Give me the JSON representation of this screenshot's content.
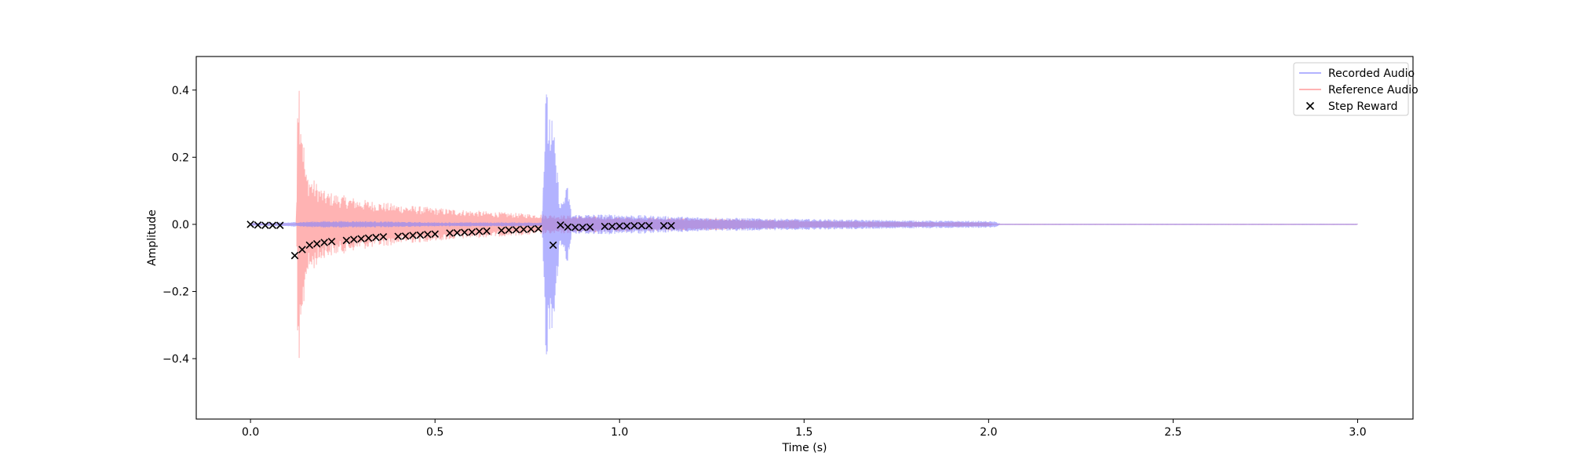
{
  "chart_data": {
    "type": "line",
    "title": "",
    "xlabel": "Time (s)",
    "ylabel": "Amplitude",
    "xlim": [
      -0.147,
      3.15
    ],
    "ylim": [
      -0.58,
      0.5
    ],
    "x_ticks": [
      0.0,
      0.5,
      1.0,
      1.5,
      2.0,
      2.5,
      3.0
    ],
    "x_tick_labels": [
      "0.0",
      "0.5",
      "1.0",
      "1.5",
      "2.0",
      "2.5",
      "3.0"
    ],
    "y_ticks": [
      -0.4,
      -0.2,
      0.0,
      0.2,
      0.4
    ],
    "y_tick_labels": [
      "−0.4",
      "−0.2",
      "0.0",
      "0.2",
      "0.4"
    ],
    "grid": false,
    "legend_position": "top-right",
    "series": [
      {
        "name": "Recorded Audio",
        "kind": "waveform",
        "color": "#8080ff",
        "x_range": [
          0.0,
          3.0
        ],
        "envelope": [
          [
            0.0,
            0.004
          ],
          [
            0.1,
            0.006
          ],
          [
            0.2,
            0.01
          ],
          [
            0.3,
            0.01
          ],
          [
            0.4,
            0.008
          ],
          [
            0.5,
            0.006
          ],
          [
            0.6,
            0.006
          ],
          [
            0.7,
            0.006
          ],
          [
            0.79,
            0.006
          ],
          [
            0.8,
            0.41
          ],
          [
            0.82,
            0.3
          ],
          [
            0.84,
            0.06
          ],
          [
            0.86,
            0.12
          ],
          [
            0.87,
            0.03
          ],
          [
            1.0,
            0.03
          ],
          [
            1.2,
            0.022
          ],
          [
            1.4,
            0.018
          ],
          [
            1.6,
            0.015
          ],
          [
            1.8,
            0.012
          ],
          [
            2.0,
            0.01
          ],
          [
            2.02,
            0.008
          ],
          [
            2.03,
            0.0005
          ],
          [
            3.0,
            0.0005
          ]
        ]
      },
      {
        "name": "Reference Audio",
        "kind": "waveform",
        "color": "#ff8080",
        "x_range": [
          0.0,
          3.0
        ],
        "envelope": [
          [
            0.0,
            0.0
          ],
          [
            0.12,
            0.0
          ],
          [
            0.125,
            0.0
          ],
          [
            0.127,
            0.47
          ],
          [
            0.13,
            0.5
          ],
          [
            0.15,
            0.16
          ],
          [
            0.2,
            0.1
          ],
          [
            0.3,
            0.075
          ],
          [
            0.4,
            0.06
          ],
          [
            0.5,
            0.05
          ],
          [
            0.6,
            0.042
          ],
          [
            0.7,
            0.035
          ],
          [
            0.8,
            0.03
          ],
          [
            0.9,
            0.025
          ],
          [
            1.0,
            0.022
          ],
          [
            1.2,
            0.018
          ],
          [
            1.4,
            0.014
          ],
          [
            1.6,
            0.011
          ],
          [
            1.8,
            0.008
          ],
          [
            2.0,
            0.006
          ],
          [
            2.01,
            0.0005
          ],
          [
            3.0,
            0.0005
          ]
        ]
      },
      {
        "name": "Step Reward",
        "kind": "scatter",
        "marker": "x",
        "color": "#000000",
        "x": [
          0.0,
          0.02,
          0.04,
          0.06,
          0.08,
          0.12,
          0.14,
          0.16,
          0.18,
          0.2,
          0.22,
          0.26,
          0.28,
          0.3,
          0.32,
          0.34,
          0.36,
          0.4,
          0.42,
          0.44,
          0.46,
          0.48,
          0.5,
          0.54,
          0.56,
          0.58,
          0.6,
          0.62,
          0.64,
          0.68,
          0.7,
          0.72,
          0.74,
          0.76,
          0.78,
          0.82,
          0.84,
          0.86,
          0.88,
          0.9,
          0.92,
          0.96,
          0.98,
          1.0,
          1.02,
          1.04,
          1.06,
          1.08,
          1.12,
          1.14
        ],
        "y": [
          0.0,
          -0.002,
          -0.003,
          -0.003,
          -0.003,
          -0.093,
          -0.075,
          -0.062,
          -0.058,
          -0.054,
          -0.051,
          -0.048,
          -0.045,
          -0.043,
          -0.041,
          -0.039,
          -0.037,
          -0.036,
          -0.035,
          -0.033,
          -0.032,
          -0.03,
          -0.029,
          -0.026,
          -0.025,
          -0.024,
          -0.023,
          -0.021,
          -0.02,
          -0.018,
          -0.017,
          -0.016,
          -0.015,
          -0.014,
          -0.013,
          -0.062,
          -0.002,
          -0.008,
          -0.009,
          -0.009,
          -0.008,
          -0.006,
          -0.006,
          -0.005,
          -0.005,
          -0.004,
          -0.004,
          -0.004,
          -0.004,
          -0.004
        ]
      }
    ]
  }
}
